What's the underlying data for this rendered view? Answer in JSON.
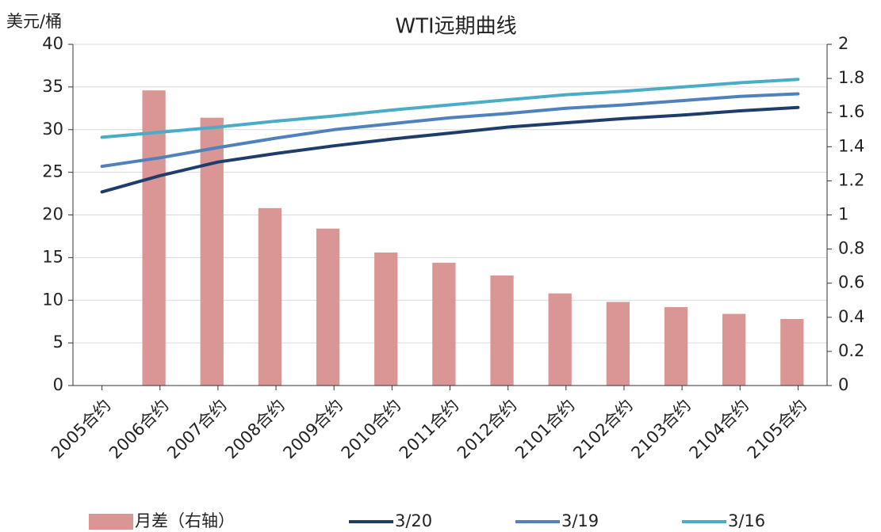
{
  "chart_data": {
    "type": "combo",
    "title": "WTI远期曲线",
    "y_label": "美元/桶",
    "categories": [
      "2005合约",
      "2006合约",
      "2007合约",
      "2008合约",
      "2009合约",
      "2010合约",
      "2011合约",
      "2012合约",
      "2101合约",
      "2102合约",
      "2103合约",
      "2104合约",
      "2105合约"
    ],
    "series": [
      {
        "name": "月差（右轴）",
        "type": "bar",
        "axis": "y2",
        "color": "#d99694",
        "values": [
          null,
          1.73,
          1.57,
          1.04,
          0.92,
          0.78,
          0.72,
          0.645,
          0.54,
          0.49,
          0.46,
          0.42,
          0.39
        ]
      },
      {
        "name": "3/20",
        "type": "line",
        "color": "#1f3d6b",
        "values": [
          22.7,
          24.6,
          26.2,
          27.2,
          28.1,
          28.9,
          29.6,
          30.3,
          30.8,
          31.3,
          31.7,
          32.2,
          32.6
        ]
      },
      {
        "name": "3/19",
        "type": "line",
        "color": "#4f81bd",
        "values": [
          25.7,
          26.7,
          27.9,
          29.0,
          30.0,
          30.7,
          31.4,
          31.9,
          32.5,
          32.9,
          33.4,
          33.9,
          34.2
        ]
      },
      {
        "name": "3/16",
        "type": "line",
        "color": "#4bacc6",
        "values": [
          29.1,
          29.7,
          30.3,
          31.0,
          31.6,
          32.3,
          32.9,
          33.5,
          34.1,
          34.5,
          35.0,
          35.5,
          35.9
        ]
      }
    ],
    "ylim": [
      0,
      40
    ],
    "yticks": [
      0,
      5,
      10,
      15,
      20,
      25,
      30,
      35,
      40
    ],
    "y2lim": [
      0,
      2
    ],
    "y2ticks": [
      0,
      0.2,
      0.4,
      0.6,
      0.8,
      1,
      1.2,
      1.4,
      1.6,
      1.8,
      2
    ],
    "grid": true,
    "legend": "bottom"
  }
}
